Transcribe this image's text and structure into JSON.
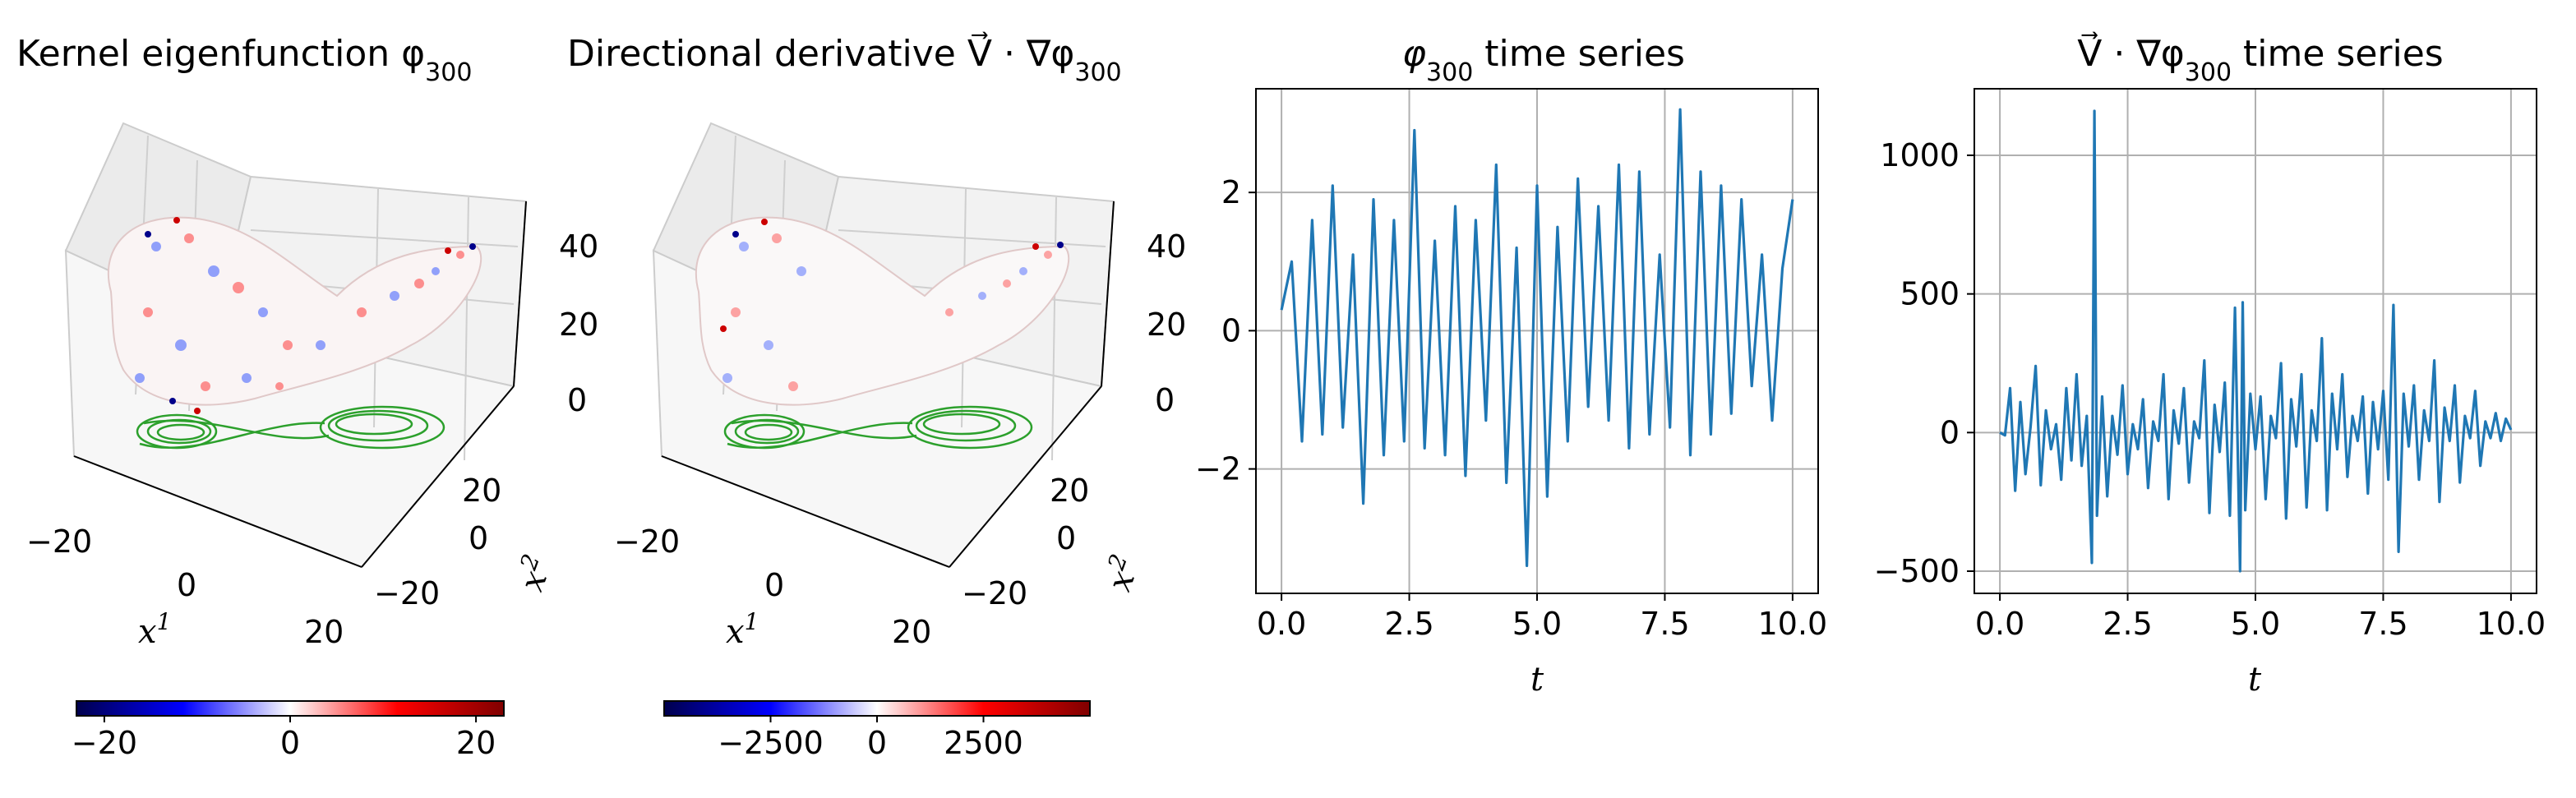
{
  "colors": {
    "line": "#1f77b4",
    "grid": "#b0b0b0",
    "trajectory": "#2ca02c",
    "pane": "#f2f2f2",
    "cmap": [
      "#00004c",
      "#0000ff",
      "#ffffff",
      "#ff0000",
      "#800000"
    ]
  },
  "chart_data": [
    {
      "type": "scatter3d",
      "title": "Kernel eigenfunction φ",
      "title_subscript": "300",
      "xlabel": "x",
      "xlabel_sup": "1",
      "ylabel": "x",
      "ylabel_sup": "2",
      "x_ticks": [
        "−20",
        "0",
        "20"
      ],
      "y_ticks": [
        "20",
        "0",
        "−20"
      ],
      "z_ticks": [
        "40",
        "20",
        "0"
      ],
      "colorbar": {
        "range": [
          -23,
          23
        ],
        "ticks": [
          -20,
          0,
          20
        ],
        "tick_labels": [
          "−20",
          "0",
          "20"
        ]
      }
    },
    {
      "type": "scatter3d",
      "title": "Directional derivative ",
      "title_vec": "V",
      "title_op": " · ∇φ",
      "title_subscript": "300",
      "xlabel": "x",
      "xlabel_sup": "1",
      "ylabel": "x",
      "ylabel_sup": "2",
      "x_ticks": [
        "−20",
        "0",
        "20"
      ],
      "y_ticks": [
        "20",
        "0",
        "−20"
      ],
      "z_ticks": [
        "40",
        "20",
        "0"
      ],
      "colorbar": {
        "range": [
          -5000,
          5000
        ],
        "ticks": [
          -2500,
          0,
          2500
        ],
        "tick_labels": [
          "−2500",
          "0",
          "2500"
        ]
      }
    },
    {
      "type": "line",
      "title": "φ",
      "title_subscript": "300",
      "title_suffix": " time series",
      "xlabel": "t",
      "xlim": [
        -0.5,
        10.5
      ],
      "ylim": [
        -3.8,
        3.5
      ],
      "xticks": [
        0,
        2.5,
        5,
        7.5,
        10
      ],
      "xtick_labels": [
        "0.0",
        "2.5",
        "5.0",
        "7.5",
        "10.0"
      ],
      "yticks": [
        -2,
        0,
        2
      ],
      "ytick_labels": [
        "−2",
        "0",
        "2"
      ],
      "grid": true,
      "x": [
        0.0,
        0.2,
        0.4,
        0.6,
        0.8,
        1.0,
        1.2,
        1.4,
        1.6,
        1.8,
        2.0,
        2.2,
        2.4,
        2.6,
        2.8,
        3.0,
        3.2,
        3.4,
        3.6,
        3.8,
        4.0,
        4.2,
        4.4,
        4.6,
        4.8,
        5.0,
        5.2,
        5.4,
        5.6,
        5.8,
        6.0,
        6.2,
        6.4,
        6.6,
        6.8,
        7.0,
        7.2,
        7.4,
        7.6,
        7.8,
        8.0,
        8.2,
        8.4,
        8.6,
        8.8,
        9.0,
        9.2,
        9.4,
        9.6,
        9.8,
        10.0
      ],
      "values": [
        0.3,
        1.0,
        -1.6,
        1.6,
        -1.5,
        2.1,
        -1.4,
        1.1,
        -2.5,
        1.9,
        -1.8,
        1.6,
        -1.6,
        2.9,
        -1.7,
        1.3,
        -1.8,
        1.8,
        -2.1,
        1.6,
        -1.3,
        2.4,
        -2.2,
        1.2,
        -3.4,
        2.1,
        -2.4,
        1.5,
        -1.6,
        2.2,
        -1.1,
        1.8,
        -1.3,
        2.4,
        -1.7,
        2.3,
        -1.5,
        1.1,
        -1.4,
        3.2,
        -1.8,
        2.3,
        -1.5,
        2.1,
        -1.2,
        1.9,
        -0.8,
        1.1,
        -1.3,
        0.9,
        1.9
      ]
    },
    {
      "type": "line",
      "title_vec": "V",
      "title_op": " · ∇φ",
      "title_subscript": "300",
      "title_suffix": " time series",
      "xlabel": "t",
      "xlim": [
        -0.5,
        10.5
      ],
      "ylim": [
        -580,
        1240
      ],
      "xticks": [
        0,
        2.5,
        5,
        7.5,
        10
      ],
      "xtick_labels": [
        "0.0",
        "2.5",
        "5.0",
        "7.5",
        "10.0"
      ],
      "yticks": [
        -500,
        0,
        500,
        1000
      ],
      "ytick_labels": [
        "−500",
        "0",
        "500",
        "1000"
      ],
      "grid": true,
      "x": [
        0.0,
        0.1,
        0.2,
        0.3,
        0.4,
        0.5,
        0.6,
        0.7,
        0.8,
        0.9,
        1.0,
        1.1,
        1.2,
        1.3,
        1.4,
        1.5,
        1.6,
        1.7,
        1.8,
        1.85,
        1.9,
        2.0,
        2.1,
        2.2,
        2.3,
        2.4,
        2.5,
        2.6,
        2.7,
        2.8,
        2.9,
        3.0,
        3.1,
        3.2,
        3.3,
        3.4,
        3.5,
        3.6,
        3.7,
        3.8,
        3.9,
        4.0,
        4.1,
        4.2,
        4.3,
        4.4,
        4.5,
        4.6,
        4.7,
        4.75,
        4.8,
        4.9,
        5.0,
        5.1,
        5.2,
        5.3,
        5.4,
        5.5,
        5.6,
        5.7,
        5.8,
        5.9,
        6.0,
        6.1,
        6.2,
        6.3,
        6.4,
        6.5,
        6.6,
        6.7,
        6.8,
        6.9,
        7.0,
        7.1,
        7.2,
        7.3,
        7.4,
        7.5,
        7.6,
        7.7,
        7.8,
        7.9,
        8.0,
        8.1,
        8.2,
        8.3,
        8.4,
        8.5,
        8.6,
        8.7,
        8.8,
        8.9,
        9.0,
        9.1,
        9.2,
        9.3,
        9.4,
        9.5,
        9.6,
        9.7,
        9.8,
        9.9,
        10.0
      ],
      "values": [
        0,
        -10,
        160,
        -210,
        110,
        -150,
        20,
        240,
        -190,
        80,
        -60,
        30,
        -170,
        160,
        -100,
        210,
        -120,
        60,
        -470,
        1160,
        -300,
        130,
        -230,
        60,
        -80,
        170,
        -150,
        30,
        -60,
        120,
        -200,
        40,
        -30,
        210,
        -240,
        80,
        -40,
        160,
        -180,
        40,
        -20,
        260,
        -290,
        100,
        -70,
        180,
        -300,
        450,
        -500,
        470,
        -280,
        140,
        -60,
        130,
        -240,
        60,
        -20,
        250,
        -310,
        120,
        -50,
        210,
        -270,
        80,
        -30,
        340,
        -280,
        140,
        -60,
        210,
        -160,
        60,
        -30,
        130,
        -220,
        110,
        -60,
        150,
        -170,
        460,
        -430,
        140,
        -50,
        170,
        -170,
        80,
        -30,
        260,
        -250,
        90,
        -30,
        170,
        -180,
        60,
        -20,
        150,
        -120,
        40,
        -20,
        70,
        -30,
        50,
        10
      ]
    }
  ]
}
